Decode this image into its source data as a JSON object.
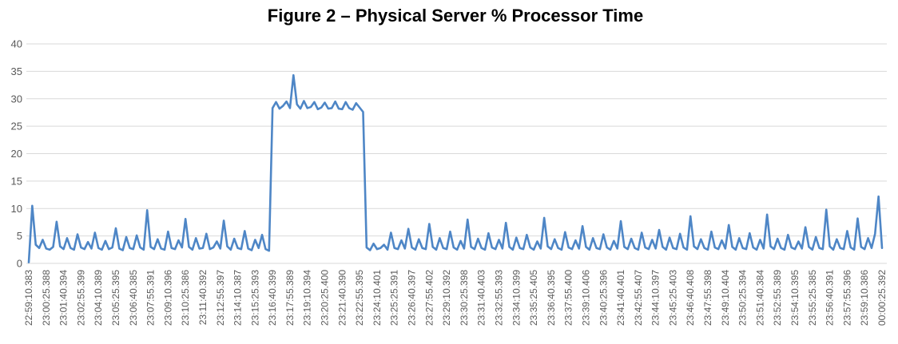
{
  "chart_data": {
    "type": "line",
    "title": "Figure 2 – Physical Server % Processor Time",
    "xlabel": "",
    "ylabel": "",
    "ylim": [
      0,
      40
    ],
    "yticks": [
      0,
      5,
      10,
      15,
      20,
      25,
      30,
      35,
      40
    ],
    "grid": "horizontal",
    "legend": "none",
    "series_name": "% Processor Time",
    "series_color": "#4E86C6",
    "gridline_color": "#D9D9D9",
    "axis_label_color": "#595959",
    "title_color": "#000000",
    "points_per_label": 5,
    "x_labels": [
      "22:59:10.383",
      "23:00:25.388",
      "23:01:40.394",
      "23:02:55.399",
      "23:04:10.389",
      "23:05:25.395",
      "23:06:40.385",
      "23:07:55.391",
      "23:09:10.396",
      "23:10:25.386",
      "23:11:40.392",
      "23:12:55.397",
      "23:14:10.387",
      "23:15:25.393",
      "23:16:40.399",
      "23:17:55.389",
      "23:19:10.394",
      "23:20:25.400",
      "23:21:40.390",
      "23:22:55.395",
      "23:24:10.401",
      "23:25:25.391",
      "23:26:40.397",
      "23:27:55.402",
      "23:29:10.392",
      "23:30:25.398",
      "23:31:40.403",
      "23:32:55.393",
      "23:34:10.399",
      "23:35:25.405",
      "23:36:40.395",
      "23:37:55.400",
      "23:39:10.406",
      "23:40:25.396",
      "23:41:40.401",
      "23:42:55.407",
      "23:44:10.397",
      "23:45:25.403",
      "23:46:40.408",
      "23:47:55.398",
      "23:49:10.404",
      "23:50:25.394",
      "23:51:40.384",
      "23:52:55.389",
      "23:54:10.395",
      "23:55:25.385",
      "23:56:40.391",
      "23:57:55.396",
      "23:59:10.386",
      "00:00:25.392"
    ],
    "values": [
      0.2,
      10.5,
      3.4,
      2.8,
      4.3,
      2.7,
      2.5,
      3.0,
      7.6,
      3.1,
      2.6,
      4.6,
      2.8,
      2.5,
      5.3,
      2.9,
      2.6,
      3.9,
      2.7,
      5.6,
      2.8,
      2.5,
      4.1,
      2.6,
      2.9,
      6.4,
      2.7,
      2.4,
      4.8,
      2.8,
      2.6,
      5.1,
      2.9,
      2.5,
      9.7,
      3.0,
      2.6,
      4.4,
      2.7,
      2.5,
      5.8,
      2.8,
      2.6,
      4.2,
      2.9,
      8.1,
      3.0,
      2.5,
      4.6,
      2.7,
      2.8,
      5.4,
      2.6,
      2.9,
      4.0,
      2.7,
      7.8,
      3.1,
      2.5,
      4.5,
      2.8,
      2.6,
      5.9,
      2.7,
      2.4,
      4.3,
      2.8,
      5.2,
      2.6,
      2.3,
      28.3,
      29.4,
      28.2,
      28.7,
      29.5,
      28.3,
      34.3,
      29.0,
      28.2,
      29.6,
      28.3,
      28.5,
      29.4,
      28.1,
      28.4,
      29.3,
      28.2,
      28.3,
      29.5,
      28.2,
      28.1,
      29.4,
      28.3,
      28.0,
      29.2,
      28.4,
      27.6,
      2.9,
      2.4,
      3.6,
      2.6,
      2.8,
      3.4,
      2.5,
      5.6,
      2.8,
      2.6,
      4.2,
      2.7,
      6.3,
      2.9,
      2.5,
      4.4,
      2.8,
      2.6,
      7.2,
      3.0,
      2.5,
      4.6,
      2.8,
      2.6,
      5.8,
      2.9,
      2.5,
      4.1,
      2.7,
      8.0,
      3.0,
      2.6,
      4.5,
      2.8,
      2.5,
      5.5,
      2.9,
      2.6,
      4.3,
      2.7,
      7.4,
      3.0,
      2.5,
      4.7,
      2.8,
      2.6,
      5.2,
      2.9,
      2.5,
      4.0,
      2.7,
      8.3,
      3.1,
      2.6,
      4.4,
      2.8,
      2.5,
      5.7,
      2.9,
      2.6,
      4.2,
      2.7,
      6.8,
      3.0,
      2.5,
      4.6,
      2.8,
      2.6,
      5.3,
      2.9,
      2.5,
      4.1,
      2.7,
      7.7,
      3.0,
      2.6,
      4.5,
      2.8,
      2.5,
      5.6,
      2.9,
      2.6,
      4.3,
      2.7,
      6.1,
      3.0,
      2.5,
      4.7,
      2.8,
      2.6,
      5.4,
      2.9,
      2.5,
      8.6,
      3.1,
      2.6,
      4.4,
      2.8,
      2.5,
      5.8,
      2.9,
      2.6,
      4.2,
      2.7,
      7.0,
      3.0,
      2.5,
      4.6,
      2.8,
      2.6,
      5.5,
      2.9,
      2.5,
      4.3,
      2.7,
      8.9,
      3.1,
      2.6,
      4.5,
      2.8,
      2.5,
      5.2,
      2.9,
      2.6,
      4.0,
      2.7,
      6.6,
      3.0,
      2.5,
      4.8,
      2.8,
      2.6,
      9.8,
      3.1,
      2.5,
      4.4,
      2.8,
      2.6,
      5.9,
      2.9,
      2.5,
      8.2,
      3.0,
      2.6,
      4.6,
      2.8,
      5.4,
      12.2,
      2.8
    ]
  }
}
